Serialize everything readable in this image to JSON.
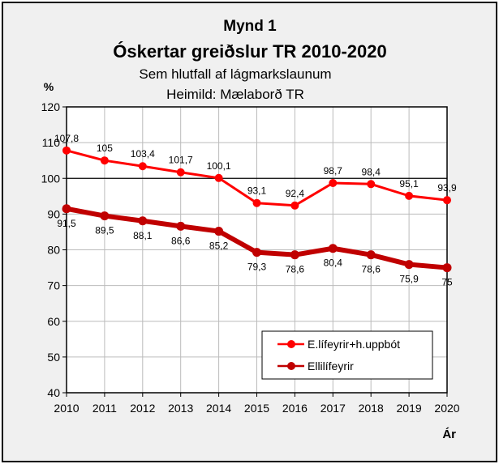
{
  "chart_data": {
    "type": "line",
    "title": "Mynd 1",
    "subtitle": "Óskertar greiðslur TR 2010-2020",
    "subtitle2": "Sem hlutfall af lágmarkslaunum",
    "source": "Heimild: Mælaborð TR",
    "xlabel": "Ár",
    "ylabel": "%",
    "x": [
      "2010",
      "2011",
      "2012",
      "2013",
      "2014",
      "2015",
      "2016",
      "2017",
      "2018",
      "2019",
      "2020"
    ],
    "ylim": [
      40,
      120
    ],
    "yticks": [
      "40",
      "50",
      "60",
      "70",
      "80",
      "90",
      "100",
      "110",
      "120"
    ],
    "grid": true,
    "reference_line": 100,
    "legend_position": "bottom-right",
    "series": [
      {
        "name": "E.lífeyrir+h.uppbót",
        "color": "#ff0000",
        "values": [
          107.8,
          105,
          103.4,
          101.7,
          100.1,
          93.1,
          92.4,
          98.7,
          98.4,
          95.1,
          93.9
        ],
        "labels": [
          "107,8",
          "105",
          "103,4",
          "101,7",
          "100,1",
          "93,1",
          "92,4",
          "98,7",
          "98,4",
          "95,1",
          "93,9"
        ]
      },
      {
        "name": "Ellilífeyrir",
        "color": "#c00000",
        "values": [
          91.5,
          89.5,
          88.1,
          86.6,
          85.2,
          79.3,
          78.6,
          80.4,
          78.6,
          75.9,
          75
        ],
        "labels": [
          "91,5",
          "89,5",
          "88,1",
          "86,6",
          "85,2",
          "79,3",
          "78,6",
          "80,4",
          "78,6",
          "75,9",
          "75"
        ]
      }
    ]
  }
}
